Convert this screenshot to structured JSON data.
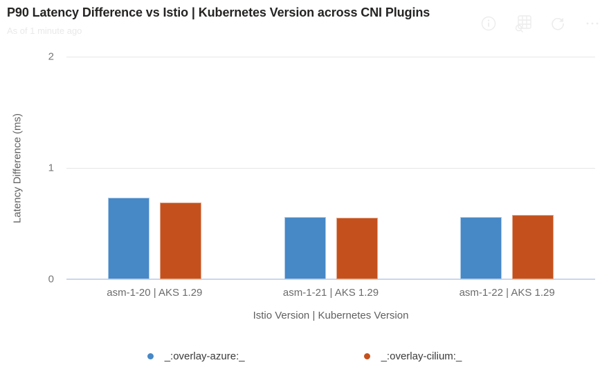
{
  "header": {
    "title": "P90 Latency Difference vs Istio | Kubernetes Version across CNI Plugins",
    "subtitle": "As of 1 minute ago",
    "toolbar_icons": [
      "info",
      "show-data-table",
      "refresh",
      "more-options"
    ]
  },
  "chart_data": {
    "type": "bar",
    "title": "P90 Latency Difference vs Istio | Kubernetes Version across CNI Plugins",
    "categories": [
      "asm-1-20 | AKS 1.29",
      "asm-1-21 | AKS 1.29",
      "asm-1-22 | AKS 1.29"
    ],
    "series": [
      {
        "name": "_:overlay-azure:_",
        "color": "#4788C7",
        "edge": "#aecbe8",
        "values": [
          0.73,
          0.56,
          0.56
        ]
      },
      {
        "name": "_:overlay-cilium:_",
        "color": "#C4511D",
        "edge": "#e3a78b",
        "values": [
          0.69,
          0.55,
          0.58
        ]
      }
    ],
    "xlabel": "Istio Version | Kubernetes Version",
    "ylabel": "Latency Difference (ms)",
    "ylim": [
      0,
      2
    ],
    "yticks": [
      0,
      1,
      2
    ],
    "grid": true,
    "legend_position": "bottom"
  },
  "colors": {
    "grid": "#e6e6e6",
    "axis_line": "#c9d7e9",
    "title_text": "#252423",
    "tick_text": "#6b6b6b"
  }
}
